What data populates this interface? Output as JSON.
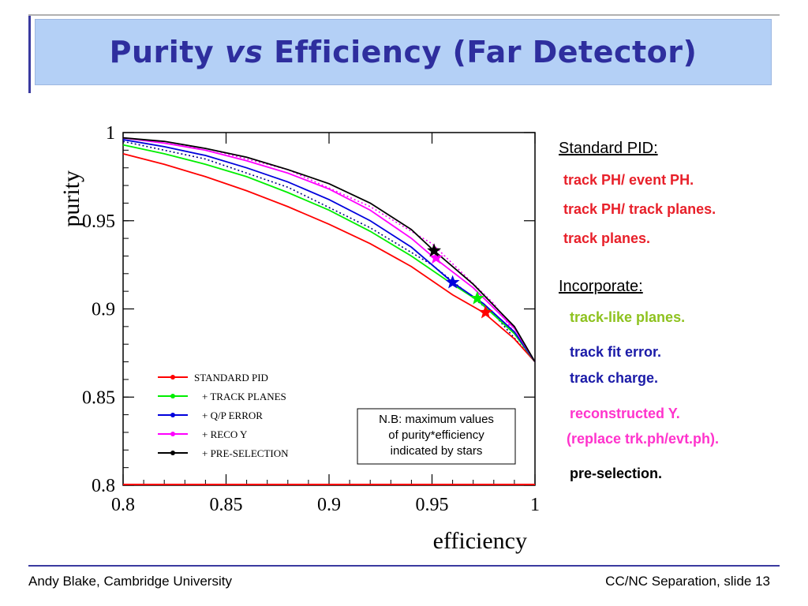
{
  "title": {
    "main": "Purity",
    "vs": "vs",
    "rest": "Efficiency (Far Detector)"
  },
  "sidebar": {
    "standard_pid_heading": "Standard PID:",
    "standard_items": [
      {
        "text": "track PH/ event PH.",
        "color": "#e8202a"
      },
      {
        "text": "track PH/ track planes.",
        "color": "#e8202a"
      },
      {
        "text": "track planes.",
        "color": "#e8202a"
      }
    ],
    "incorporate_heading": "Incorporate:",
    "incorporate_items": [
      {
        "text": "track-like planes.",
        "color": "#8ec21f"
      },
      {
        "text": "track fit error.",
        "color": "#1b1ba8"
      },
      {
        "text": "track charge.",
        "color": "#1b1ba8"
      },
      {
        "text": "reconstructed Y.",
        "color": "#ff33cc"
      },
      {
        "text": "(replace trk.ph/evt.ph).",
        "color": "#ff33cc"
      },
      {
        "text": "pre-selection.",
        "color": "#000000"
      }
    ]
  },
  "note": {
    "line1": "N.B: maximum values",
    "line2": "of purity*efficiency",
    "line3": "indicated by stars"
  },
  "footer": {
    "left": "Andy Blake, Cambridge University",
    "right": "CC/NC Separation, slide 13"
  },
  "chart_data": {
    "type": "line",
    "xlabel": "efficiency",
    "ylabel": "purity",
    "xlim": [
      0.8,
      1.0
    ],
    "ylim": [
      0.8,
      1.0
    ],
    "x_ticks": [
      "0.8",
      "0.85",
      "0.9",
      "0.95",
      "1"
    ],
    "y_ticks": [
      "0.8",
      "0.85",
      "0.9",
      "0.95",
      "1"
    ],
    "legend_position": "bottom-left",
    "series": [
      {
        "name": "STANDARD PID",
        "color": "#ff0000",
        "x": [
          0.8,
          0.82,
          0.84,
          0.86,
          0.88,
          0.9,
          0.92,
          0.94,
          0.96,
          0.975,
          0.99,
          1.0
        ],
        "y": [
          0.988,
          0.982,
          0.975,
          0.967,
          0.958,
          0.948,
          0.937,
          0.924,
          0.908,
          0.898,
          0.883,
          0.87
        ],
        "star": [
          0.976,
          0.898
        ]
      },
      {
        "name": "+ TRACK PLANES",
        "color": "#00ee00",
        "x": [
          0.8,
          0.82,
          0.84,
          0.86,
          0.88,
          0.9,
          0.92,
          0.94,
          0.96,
          0.972,
          0.99,
          1.0
        ],
        "y": [
          0.993,
          0.988,
          0.982,
          0.975,
          0.966,
          0.956,
          0.944,
          0.93,
          0.914,
          0.905,
          0.886,
          0.87
        ],
        "star": [
          0.972,
          0.906
        ]
      },
      {
        "name": "+ Q/P ERROR",
        "color": "#0000dd",
        "x": [
          0.8,
          0.82,
          0.84,
          0.86,
          0.88,
          0.9,
          0.92,
          0.94,
          0.96,
          0.975,
          0.99,
          1.0
        ],
        "y": [
          0.996,
          0.992,
          0.987,
          0.98,
          0.972,
          0.962,
          0.95,
          0.935,
          0.915,
          0.903,
          0.887,
          0.87
        ],
        "star": [
          0.96,
          0.915
        ]
      },
      {
        "name": "+ RECO Y",
        "color": "#ff00ff",
        "x": [
          0.8,
          0.82,
          0.84,
          0.86,
          0.88,
          0.9,
          0.92,
          0.94,
          0.95,
          0.97,
          0.99,
          1.0
        ],
        "y": [
          0.997,
          0.994,
          0.99,
          0.984,
          0.977,
          0.968,
          0.956,
          0.94,
          0.93,
          0.912,
          0.889,
          0.87
        ],
        "star": [
          0.952,
          0.929
        ]
      },
      {
        "name": "+ PRE-SELECTION",
        "color": "#000000",
        "x": [
          0.8,
          0.82,
          0.84,
          0.86,
          0.88,
          0.9,
          0.92,
          0.94,
          0.95,
          0.97,
          0.99,
          1.0
        ],
        "y": [
          0.997,
          0.995,
          0.991,
          0.986,
          0.979,
          0.971,
          0.96,
          0.945,
          0.934,
          0.914,
          0.89,
          0.87
        ],
        "star": [
          0.951,
          0.933
        ]
      }
    ],
    "dotted_series": [
      {
        "color": "#000080",
        "x": [
          0.8,
          0.84,
          0.88,
          0.92,
          0.95,
          0.98,
          1.0
        ],
        "y": [
          0.995,
          0.985,
          0.969,
          0.946,
          0.925,
          0.897,
          0.87
        ]
      },
      {
        "color": "#ff00ff",
        "x": [
          0.8,
          0.84,
          0.88,
          0.92,
          0.95,
          0.98,
          1.0
        ],
        "y": [
          0.997,
          0.991,
          0.979,
          0.958,
          0.937,
          0.903,
          0.87
        ]
      }
    ]
  }
}
